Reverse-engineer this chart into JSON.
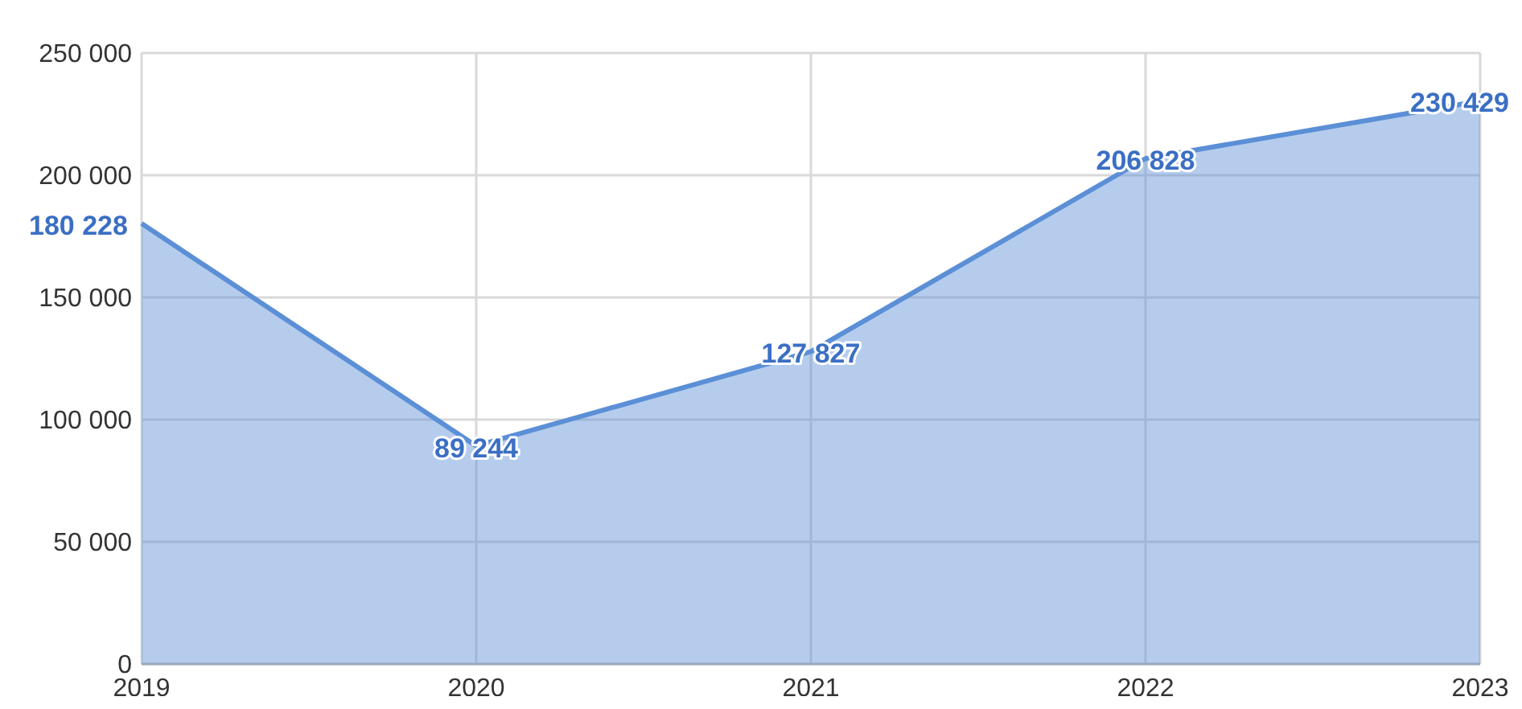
{
  "chart_data": {
    "type": "area",
    "categories": [
      "2019",
      "2020",
      "2021",
      "2022",
      "2023"
    ],
    "series": [
      {
        "color": "#5b8fd6",
        "values": [
          180228,
          89244,
          127827,
          206828,
          230429
        ],
        "value_labels": [
          "180 228",
          "89 244",
          "127 827",
          "206 828",
          "230 429"
        ]
      }
    ],
    "ylim": [
      0,
      250000
    ],
    "yticks": [
      {
        "value": 0,
        "label": "0"
      },
      {
        "value": 50000,
        "label": "50 000"
      },
      {
        "value": 100000,
        "label": "100 000"
      },
      {
        "value": 150000,
        "label": "150 000"
      },
      {
        "value": 200000,
        "label": "200 000"
      },
      {
        "value": 250000,
        "label": "250 000"
      }
    ],
    "grid": true
  }
}
